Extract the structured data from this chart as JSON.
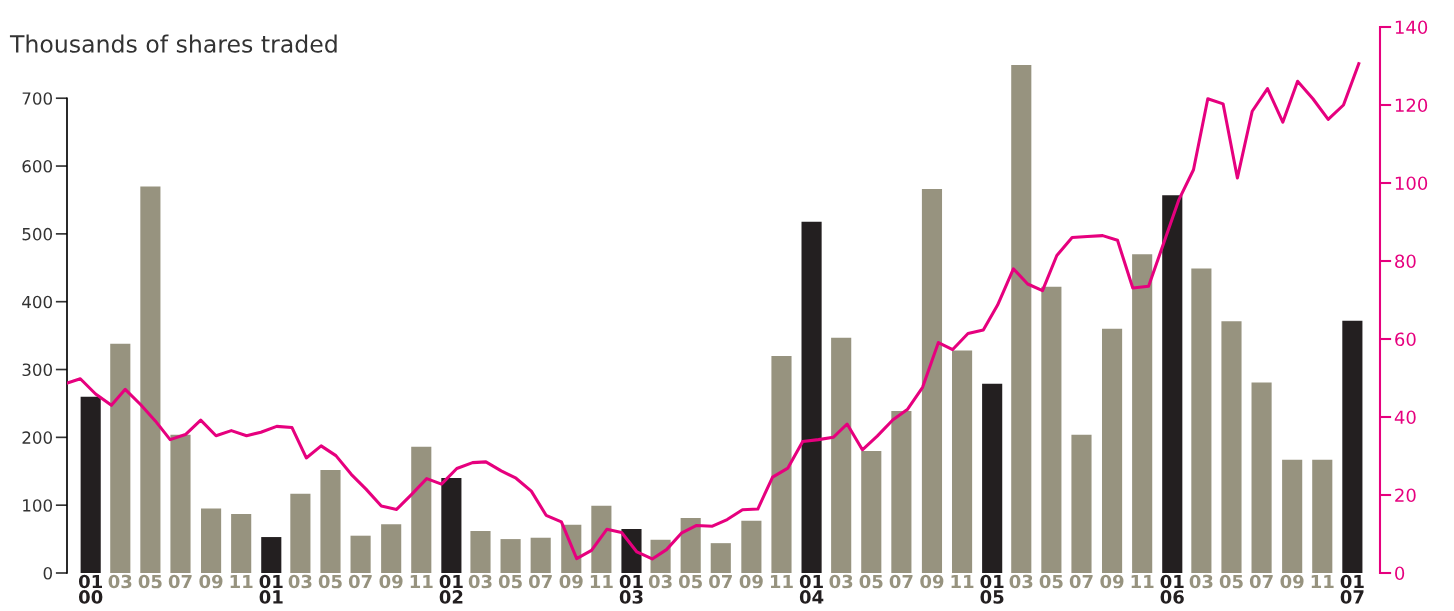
{
  "chart_data": {
    "type": "bar",
    "title": "Thousands of shares traded",
    "x": [
      "2000-01",
      "2000-03",
      "2000-05",
      "2000-07",
      "2000-09",
      "2000-11",
      "2001-01",
      "2001-03",
      "2001-05",
      "2001-07",
      "2001-09",
      "2001-11",
      "2002-01",
      "2002-03",
      "2002-05",
      "2002-07",
      "2002-09",
      "2002-11",
      "2003-01",
      "2003-03",
      "2003-05",
      "2003-07",
      "2003-09",
      "2003-11",
      "2004-01",
      "2004-03",
      "2004-05",
      "2004-07",
      "2004-09",
      "2004-11",
      "2005-01",
      "2005-03",
      "2005-05",
      "2005-07",
      "2005-09",
      "2005-11",
      "2006-01",
      "2006-03",
      "2006-05",
      "2006-07",
      "2006-09",
      "2006-11",
      "2007-01"
    ],
    "xlim": [
      "1999-11-14",
      "2007-02-26"
    ],
    "xticks": [
      {
        "value": "2000-01",
        "label": "01\n00"
      },
      {
        "value": "2000-03",
        "label": "03"
      },
      {
        "value": "2000-05",
        "label": "05"
      },
      {
        "value": "2000-07",
        "label": "07"
      },
      {
        "value": "2000-09",
        "label": "09"
      },
      {
        "value": "2000-11",
        "label": "11"
      },
      {
        "value": "2001-01",
        "label": "01\n01"
      },
      {
        "value": "2001-03",
        "label": "03"
      },
      {
        "value": "2001-05",
        "label": "05"
      },
      {
        "value": "2001-07",
        "label": "07"
      },
      {
        "value": "2001-09",
        "label": "09"
      },
      {
        "value": "2001-11",
        "label": "11"
      },
      {
        "value": "2002-01",
        "label": "01\n02"
      },
      {
        "value": "2002-03",
        "label": "03"
      },
      {
        "value": "2002-05",
        "label": "05"
      },
      {
        "value": "2002-07",
        "label": "07"
      },
      {
        "value": "2002-09",
        "label": "09"
      },
      {
        "value": "2002-11",
        "label": "11"
      },
      {
        "value": "2003-01",
        "label": "01\n03"
      },
      {
        "value": "2003-03",
        "label": "03"
      },
      {
        "value": "2003-05",
        "label": "05"
      },
      {
        "value": "2003-07",
        "label": "07"
      },
      {
        "value": "2003-09",
        "label": "09"
      },
      {
        "value": "2003-11",
        "label": "11"
      },
      {
        "value": "2004-01",
        "label": "01\n04"
      },
      {
        "value": "2004-03",
        "label": "03"
      },
      {
        "value": "2004-05",
        "label": "05"
      },
      {
        "value": "2004-07",
        "label": "07"
      },
      {
        "value": "2004-09",
        "label": "09"
      },
      {
        "value": "2004-11",
        "label": "11"
      },
      {
        "value": "2005-01",
        "label": "01\n05"
      },
      {
        "value": "2005-03",
        "label": "03"
      },
      {
        "value": "2005-05",
        "label": "05"
      },
      {
        "value": "2005-07",
        "label": "07"
      },
      {
        "value": "2005-09",
        "label": "09"
      },
      {
        "value": "2005-11",
        "label": "11"
      },
      {
        "value": "2006-01",
        "label": "01\n06"
      },
      {
        "value": "2006-03",
        "label": "03"
      },
      {
        "value": "2006-05",
        "label": "05"
      },
      {
        "value": "2006-07",
        "label": "07"
      },
      {
        "value": "2006-09",
        "label": "09"
      },
      {
        "value": "2006-11",
        "label": "11"
      },
      {
        "value": "2007-01",
        "label": "01\n07"
      }
    ],
    "series": [
      {
        "colors": [
          "#231f20",
          "#97937f",
          "#97937f",
          "#97937f",
          "#97937f",
          "#97937f",
          "#231f20",
          "#97937f",
          "#97937f",
          "#97937f",
          "#97937f",
          "#97937f",
          "#231f20",
          "#97937f",
          "#97937f",
          "#97937f",
          "#97937f",
          "#97937f",
          "#231f20",
          "#97937f",
          "#97937f",
          "#97937f",
          "#97937f",
          "#97937f",
          "#231f20",
          "#97937f",
          "#97937f",
          "#97937f",
          "#97937f",
          "#97937f",
          "#231f20",
          "#97937f",
          "#97937f",
          "#97937f",
          "#97937f",
          "#97937f",
          "#231f20",
          "#97937f",
          "#97937f",
          "#97937f",
          "#97937f",
          "#97937f",
          "#231f20"
        ],
        "values": [
          260,
          338,
          570,
          204,
          95,
          87,
          53,
          117,
          152,
          55,
          72,
          186,
          140,
          62,
          50,
          52,
          71,
          99,
          65,
          49,
          81,
          44,
          77,
          320,
          518,
          347,
          180,
          239,
          566,
          328,
          279,
          749,
          422,
          204,
          360,
          470,
          557,
          449,
          371,
          281,
          167,
          167,
          372
        ]
      },
      {
        "type": "line",
        "axis": "y2",
        "color": "#e6007e",
        "x": [
          "1999-11-15",
          "1999-12-11",
          "2000-01-11",
          "2000-02-12",
          "2000-03-11",
          "2000-04-11",
          "2000-05-11",
          "2000-06-10",
          "2000-07-11",
          "2000-08-11",
          "2000-09-11",
          "2000-10-12",
          "2000-11-12",
          "2000-12-11",
          "2001-01-12",
          "2001-02-12",
          "2001-03-13",
          "2001-04-12",
          "2001-05-12",
          "2001-06-12",
          "2001-07-12",
          "2001-08-12",
          "2001-09-12",
          "2001-10-12",
          "2001-11-12",
          "2001-12-12",
          "2002-01-12",
          "2002-02-13",
          "2002-03-12",
          "2002-04-12",
          "2002-05-12",
          "2002-06-12",
          "2002-07-12",
          "2002-08-12",
          "2002-09-12",
          "2002-10-12",
          "2002-11-12",
          "2002-12-12",
          "2003-01-12",
          "2003-02-12",
          "2003-03-13",
          "2003-04-13",
          "2003-05-13",
          "2003-06-14",
          "2003-07-14",
          "2003-08-14",
          "2003-09-14",
          "2003-10-14",
          "2003-11-14",
          "2003-12-14",
          "2004-01-15",
          "2004-02-14",
          "2004-03-13",
          "2004-04-13",
          "2004-05-13",
          "2004-06-14",
          "2004-07-13",
          "2004-08-13",
          "2004-09-14",
          "2004-10-13",
          "2004-11-13",
          "2004-12-14",
          "2005-01-12",
          "2005-02-13",
          "2005-03-14",
          "2005-04-13",
          "2005-05-12",
          "2005-06-12",
          "2005-07-13",
          "2005-08-13",
          "2005-09-12",
          "2005-10-13",
          "2005-11-14",
          "2006-01-14",
          "2006-02-13",
          "2006-03-14",
          "2006-04-14",
          "2006-05-13",
          "2006-06-12",
          "2006-07-13",
          "2006-08-13",
          "2006-09-12",
          "2006-10-13",
          "2006-11-13",
          "2006-12-14",
          "2007-01-14"
        ],
        "values": [
          48.7,
          49.8,
          45.9,
          43.0,
          47.1,
          43.2,
          39.0,
          34.2,
          35.5,
          39.2,
          35.2,
          36.5,
          35.2,
          36.1,
          37.6,
          37.3,
          29.5,
          32.6,
          30.1,
          25.3,
          21.5,
          17.2,
          16.3,
          20.1,
          24.2,
          22.8,
          26.8,
          28.3,
          28.5,
          26.2,
          24.3,
          21.0,
          14.8,
          13.1,
          3.7,
          5.8,
          11.2,
          10.4,
          5.4,
          3.6,
          6.0,
          10.3,
          12.2,
          12.0,
          13.7,
          16.2,
          16.4,
          24.6,
          26.9,
          33.7,
          34.2,
          34.8,
          38.2,
          31.6,
          35.1,
          39.3,
          41.9,
          47.6,
          59.1,
          57.3,
          61.4,
          62.3,
          68.7,
          78.0,
          74.1,
          72.4,
          81.4,
          86.0,
          86.3,
          86.5,
          85.3,
          73.1,
          73.5,
          95.6,
          103.4,
          121.6,
          120.3,
          101.3,
          118.4,
          124.2,
          115.6,
          126.1,
          121.6,
          116.3,
          120.0,
          130.6
        ]
      }
    ],
    "ylim": [
      0,
      805
    ],
    "yticks": [
      0,
      100,
      200,
      300,
      400,
      500,
      600,
      700
    ],
    "y2lim": [
      0,
      140
    ],
    "y2ticks": [
      0,
      20,
      40,
      60,
      80,
      100,
      120,
      140
    ],
    "grid": false,
    "marker": "none",
    "line_style": "solid"
  }
}
